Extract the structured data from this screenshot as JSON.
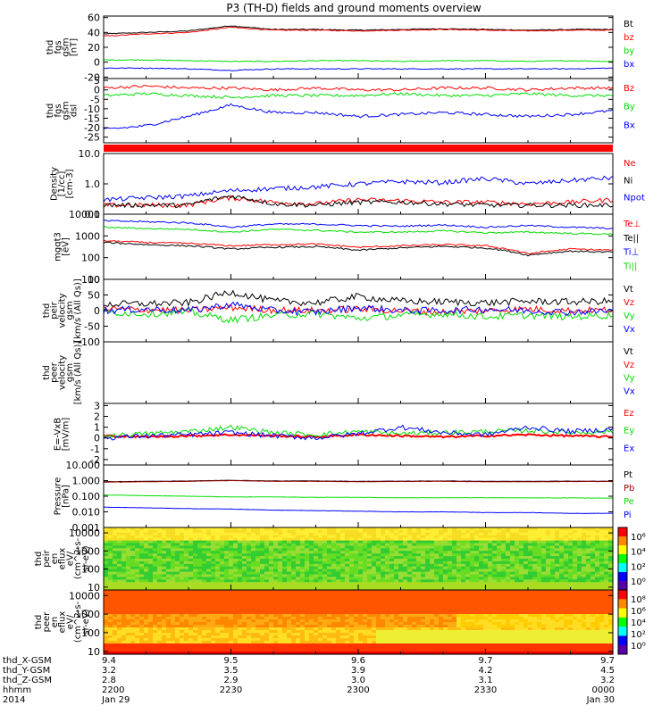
{
  "title": "P3 (TH-D) fields and ground moments overview",
  "colors": {
    "black": "#000000",
    "red": "#ff0000",
    "green": "#00dd00",
    "blue": "#0000ff",
    "darkred": "#990000"
  },
  "x_axis": {
    "tick_times": [
      "2200",
      "2230",
      "2300",
      "2330",
      "0000"
    ],
    "row_labels": [
      "thd_X-GSM",
      "thd_Y-GSM",
      "thd_Z-GSM",
      "hhmm",
      "2014"
    ],
    "rows": [
      [
        "9.4",
        "9.5",
        "9.6",
        "9.7",
        "9.7"
      ],
      [
        "3.2",
        "3.5",
        "3.9",
        "4.2",
        "4.5"
      ],
      [
        "2.8",
        "2.9",
        "3.0",
        "3.1",
        "3.2"
      ],
      [
        "2200",
        "2230",
        "2300",
        "2330",
        "0000"
      ],
      [
        "Jan 29",
        "",
        "",
        "",
        "Jan 30"
      ]
    ]
  },
  "panels": [
    {
      "id": "fgs_gsm",
      "ylabel": [
        "thd",
        "fgs",
        "gsm",
        "[nT]"
      ],
      "ticks": [
        "60",
        "40",
        "20",
        "0",
        "-20"
      ],
      "tick_values": [
        60,
        40,
        20,
        0,
        -20
      ],
      "legend": [
        {
          "text": "Bt",
          "color": "#000000"
        },
        {
          "text": "bz",
          "color": "#ff0000"
        },
        {
          "text": "by",
          "color": "#00dd00"
        },
        {
          "text": "bx",
          "color": "#0000ff"
        }
      ]
    },
    {
      "id": "fgs_dsl",
      "ylabel": [
        "thd",
        "fgs",
        "gsm",
        "dsl"
      ],
      "ticks": [
        "5",
        "0",
        "-5",
        "-10",
        "-15",
        "-20",
        "-25"
      ],
      "tick_values": [
        5,
        0,
        -5,
        -10,
        -15,
        -20,
        -25
      ],
      "legend": [
        {
          "text": "Bz",
          "color": "#ff0000"
        },
        {
          "text": "By",
          "color": "#00dd00"
        },
        {
          "text": "Bx",
          "color": "#0000ff"
        }
      ]
    },
    {
      "id": "density",
      "ylabel": [
        "Density",
        "[1/cc]",
        "[cm-3]"
      ],
      "ticks": [
        "10.0",
        "1.0",
        "0.1"
      ],
      "tick_values": [
        10,
        1,
        0.1
      ],
      "legend": [
        {
          "text": "Ne",
          "color": "#ff0000"
        },
        {
          "text": "Ni",
          "color": "#000000"
        },
        {
          "text": "Npot",
          "color": "#0000ff"
        }
      ]
    },
    {
      "id": "temperature",
      "ylabel": [
        "mgqt3",
        "[eV]"
      ],
      "ticks": [
        "10000",
        "1000",
        "100",
        "10"
      ],
      "tick_values": [
        10000,
        1000,
        100,
        10
      ],
      "legend": [
        {
          "text": "Te⊥",
          "color": "#ff0000"
        },
        {
          "text": "Te||",
          "color": "#000000"
        },
        {
          "text": "Ti⊥",
          "color": "#0000ff"
        },
        {
          "text": "Ti||",
          "color": "#00dd00"
        }
      ]
    },
    {
      "id": "peir_velocity",
      "ylabel": [
        "thd",
        "peir",
        "velocity",
        "gsm",
        "[km/s (All Qs)]"
      ],
      "ticks": [
        "100",
        "50",
        "0",
        "-50",
        "-100"
      ],
      "tick_values": [
        100,
        50,
        0,
        -50,
        -100
      ],
      "legend": [
        {
          "text": "Vt",
          "color": "#000000"
        },
        {
          "text": "Vz",
          "color": "#ff0000"
        },
        {
          "text": "Vy",
          "color": "#00dd00"
        },
        {
          "text": "Vx",
          "color": "#0000ff"
        }
      ]
    },
    {
      "id": "peer_velocity",
      "ylabel": [
        "thd",
        "peer",
        "velocity",
        "gsm",
        "[km/s (All Qs)]"
      ],
      "ticks": [],
      "tick_values": [],
      "legend": [
        {
          "text": "Vt",
          "color": "#000000"
        },
        {
          "text": "Vz",
          "color": "#ff0000"
        },
        {
          "text": "Vy",
          "color": "#00dd00"
        },
        {
          "text": "Vx",
          "color": "#0000ff"
        }
      ]
    },
    {
      "id": "efield",
      "ylabel": [
        "E=-VxB",
        "[mV/m]"
      ],
      "ticks": [
        "3",
        "2",
        "1",
        "0",
        "-1",
        "-2"
      ],
      "tick_values": [
        3,
        2,
        1,
        0,
        -1,
        -2
      ],
      "legend": [
        {
          "text": "Ez",
          "color": "#ff0000"
        },
        {
          "text": "Ey",
          "color": "#00dd00"
        },
        {
          "text": "Ex",
          "color": "#0000ff"
        }
      ]
    },
    {
      "id": "pressure",
      "ylabel": [
        "Pressure",
        "[nPa]"
      ],
      "ticks": [
        "10.000",
        "1.000",
        "0.100",
        "0.010",
        "0.001"
      ],
      "tick_values": [
        10,
        1,
        0.1,
        0.01,
        0.001
      ],
      "legend": [
        {
          "text": "Pt",
          "color": "#000000"
        },
        {
          "text": "Pb",
          "color": "#990000"
        },
        {
          "text": "Pe",
          "color": "#00dd00"
        },
        {
          "text": "Pi",
          "color": "#0000ff"
        }
      ]
    },
    {
      "id": "peir_eflux",
      "ylabel": [
        "thd",
        "peir",
        "en",
        "eflux",
        "eV/",
        "(cm^2-s-",
        "sr-eV)"
      ],
      "ticks": [
        "10000",
        "1000",
        "100",
        "10"
      ],
      "tick_values": [
        10000,
        1000,
        100,
        10
      ],
      "colorbar_ticks": [
        "10⁶",
        "10⁴",
        "10²",
        "10⁰"
      ]
    },
    {
      "id": "peer_eflux",
      "ylabel": [
        "thd",
        "peer",
        "en",
        "eflux",
        "eV/",
        "(cm^2-s-",
        "sr-eV)"
      ],
      "ticks": [
        "10000",
        "1000",
        "100",
        "10"
      ],
      "tick_values": [
        10000,
        1000,
        100,
        10
      ],
      "colorbar_ticks": [
        "10⁸",
        "10⁶",
        "10⁴",
        "10²",
        "10⁰"
      ]
    }
  ],
  "chart_data": {
    "type": "line",
    "title": "P3 (TH-D) fields and ground moments overview",
    "x": [
      "2200",
      "2210",
      "2220",
      "2230",
      "2240",
      "2250",
      "2300",
      "2310",
      "2320",
      "2330",
      "2340",
      "2350",
      "0000"
    ],
    "xlabel": "hhmm",
    "panels": [
      {
        "name": "thd fgs gsm [nT]",
        "ylim": [
          -22,
          62
        ],
        "series": [
          {
            "name": "Bt",
            "values": [
              38,
              40,
              42,
              49,
              44,
              44,
              43,
              44,
              45,
              44,
              43,
              44,
              44
            ]
          },
          {
            "name": "bz",
            "values": [
              35,
              38,
              40,
              47,
              43,
              43,
              42,
              43,
              44,
              43,
              42,
              43,
              43
            ]
          },
          {
            "name": "by",
            "values": [
              3,
              3,
              2,
              1,
              1,
              2,
              2,
              1,
              2,
              2,
              1,
              2,
              1
            ]
          },
          {
            "name": "bx",
            "values": [
              -8,
              -8,
              -9,
              -11,
              -9,
              -9,
              -9,
              -9,
              -9,
              -9,
              -9,
              -9,
              -8
            ]
          }
        ]
      },
      {
        "name": "thd fgs gsm dsl",
        "ylim": [
          -28,
          6
        ],
        "series": [
          {
            "name": "Bz",
            "values": [
              1,
              2,
              1,
              1,
              0,
              1,
              0,
              0,
              1,
              1,
              0,
              1,
              1
            ]
          },
          {
            "name": "By",
            "values": [
              -3,
              -2,
              -3,
              -4,
              -3,
              -3,
              -3,
              -2,
              -3,
              -3,
              -2,
              -3,
              -3
            ]
          },
          {
            "name": "Bx",
            "values": [
              -21,
              -19,
              -14,
              -8,
              -12,
              -12,
              -14,
              -13,
              -12,
              -13,
              -14,
              -13,
              -11
            ]
          }
        ]
      },
      {
        "name": "Density [1/cc]",
        "ylim": [
          0.1,
          10
        ],
        "scale": "log",
        "series": [
          {
            "name": "Ne",
            "values": [
              0.2,
              0.2,
              0.2,
              0.35,
              0.25,
              0.22,
              0.3,
              0.28,
              0.25,
              0.25,
              0.22,
              0.25,
              0.3
            ]
          },
          {
            "name": "Ni",
            "values": [
              0.2,
              0.2,
              0.2,
              0.4,
              0.22,
              0.2,
              0.25,
              0.25,
              0.22,
              0.2,
              0.2,
              0.2,
              0.2
            ]
          },
          {
            "name": "Npot",
            "values": [
              0.3,
              0.35,
              0.4,
              0.6,
              0.7,
              0.8,
              1.0,
              1.2,
              1.1,
              1.5,
              1.0,
              1.3,
              1.6
            ]
          }
        ]
      },
      {
        "name": "mgqt3 [eV]",
        "ylim": [
          10,
          10000
        ],
        "scale": "log",
        "series": [
          {
            "name": "Te⊥",
            "values": [
              600,
              500,
              450,
              350,
              400,
              420,
              300,
              350,
              400,
              350,
              150,
              250,
              220
            ]
          },
          {
            "name": "Te||",
            "values": [
              500,
              400,
              350,
              250,
              300,
              320,
              220,
              280,
              330,
              280,
              130,
              200,
              180
            ]
          },
          {
            "name": "Ti⊥",
            "values": [
              5000,
              4500,
              4000,
              2500,
              3500,
              3500,
              3000,
              2800,
              3200,
              2500,
              3000,
              2500,
              2200
            ]
          },
          {
            "name": "Ti||",
            "values": [
              2500,
              2200,
              2000,
              1500,
              2000,
              1800,
              1500,
              1500,
              1700,
              1400,
              1500,
              1300,
              1200
            ]
          }
        ]
      },
      {
        "name": "thd peir velocity gsm [km/s (All Qs)]",
        "ylim": [
          -100,
          100
        ],
        "series": [
          {
            "name": "Vt",
            "values": [
              20,
              22,
              25,
              60,
              30,
              25,
              45,
              30,
              28,
              25,
              30,
              28,
              30
            ]
          },
          {
            "name": "Vz",
            "values": [
              5,
              3,
              0,
              10,
              2,
              0,
              5,
              0,
              -5,
              0,
              5,
              0,
              2
            ]
          },
          {
            "name": "Vy",
            "values": [
              -5,
              -10,
              -5,
              -30,
              -15,
              -10,
              -25,
              -15,
              -10,
              -20,
              -15,
              -20,
              -15
            ]
          },
          {
            "name": "Vx",
            "values": [
              0,
              5,
              0,
              20,
              0,
              -5,
              10,
              0,
              0,
              5,
              0,
              -5,
              0
            ]
          }
        ]
      },
      {
        "name": "thd peer velocity gsm [km/s (All Qs)]",
        "series": []
      },
      {
        "name": "E=-VxB [mV/m]",
        "ylim": [
          -2.5,
          3.2
        ],
        "series": [
          {
            "name": "Ez",
            "values": [
              0.2,
              0.1,
              0.2,
              0.3,
              0.2,
              0.1,
              0.3,
              0.2,
              0.1,
              0.2,
              0.3,
              0.2,
              0.1
            ]
          },
          {
            "name": "Ey",
            "values": [
              0.2,
              0.4,
              0.6,
              1.0,
              0.5,
              0.3,
              0.6,
              0.4,
              0.5,
              0.6,
              0.7,
              0.5,
              0.6
            ]
          },
          {
            "name": "Ex",
            "values": [
              0.0,
              0.2,
              0.3,
              0.5,
              0.2,
              0.0,
              0.4,
              1.0,
              0.5,
              0.3,
              1.0,
              0.6,
              0.8
            ]
          }
        ]
      },
      {
        "name": "Pressure [nPa]",
        "ylim": [
          0.001,
          10
        ],
        "scale": "log",
        "series": [
          {
            "name": "Pt",
            "values": [
              0.85,
              0.9,
              0.95,
              1.05,
              0.95,
              0.95,
              0.9,
              0.92,
              0.95,
              0.9,
              0.9,
              0.92,
              0.92
            ]
          },
          {
            "name": "Pb",
            "values": [
              0.8,
              0.85,
              0.9,
              1.0,
              0.9,
              0.9,
              0.85,
              0.88,
              0.9,
              0.85,
              0.85,
              0.88,
              0.88
            ]
          },
          {
            "name": "Pe",
            "values": [
              0.12,
              0.11,
              0.1,
              0.09,
              0.09,
              0.085,
              0.085,
              0.08,
              0.08,
              0.08,
              0.078,
              0.078,
              0.075
            ]
          },
          {
            "name": "Pi",
            "values": [
              0.02,
              0.018,
              0.016,
              0.015,
              0.013,
              0.012,
              0.011,
              0.01,
              0.01,
              0.009,
              0.009,
              0.008,
              0.008
            ]
          }
        ]
      },
      {
        "name": "thd peir en eflux",
        "type": "heatmap",
        "ylim": [
          7,
          20000
        ],
        "scale": "log"
      },
      {
        "name": "thd peer en eflux",
        "type": "heatmap",
        "ylim": [
          7,
          20000
        ],
        "scale": "log"
      }
    ]
  }
}
